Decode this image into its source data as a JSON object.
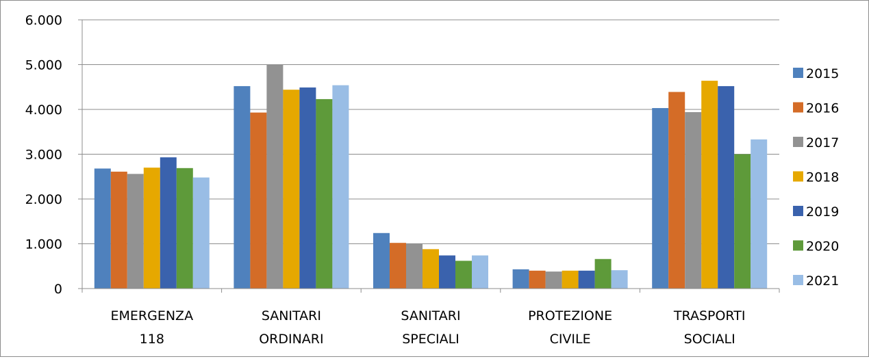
{
  "chart_data": {
    "type": "bar",
    "categories": [
      [
        "EMERGENZA",
        "118"
      ],
      [
        "SANITARI",
        "ORDINARI"
      ],
      [
        "SANITARI",
        "SPECIALI"
      ],
      [
        "PROTEZIONE",
        "CIVILE"
      ],
      [
        "TRASPORTI",
        "SOCIALI"
      ]
    ],
    "y_ticks": [
      "0",
      "1.000",
      "2.000",
      "3.000",
      "4.000",
      "5.000",
      "6.000"
    ],
    "ylim": [
      0,
      6000
    ],
    "grid": true,
    "legend_position": "right",
    "series": [
      {
        "name": "2015",
        "color": "#4f81bd",
        "values": [
          2680,
          4520,
          1240,
          430,
          4030
        ]
      },
      {
        "name": "2016",
        "color": "#d46c27",
        "values": [
          2610,
          3930,
          1020,
          400,
          4390
        ]
      },
      {
        "name": "2017",
        "color": "#929292",
        "values": [
          2560,
          5000,
          1010,
          380,
          3940
        ]
      },
      {
        "name": "2018",
        "color": "#e6a800",
        "values": [
          2700,
          4440,
          880,
          400,
          4640
        ]
      },
      {
        "name": "2019",
        "color": "#3a62ad",
        "values": [
          2930,
          4490,
          740,
          400,
          4520
        ]
      },
      {
        "name": "2020",
        "color": "#5e9a3a",
        "values": [
          2690,
          4230,
          620,
          660,
          3000
        ]
      },
      {
        "name": "2021",
        "color": "#99bde5",
        "values": [
          2480,
          4540,
          740,
          410,
          3330
        ]
      }
    ]
  }
}
